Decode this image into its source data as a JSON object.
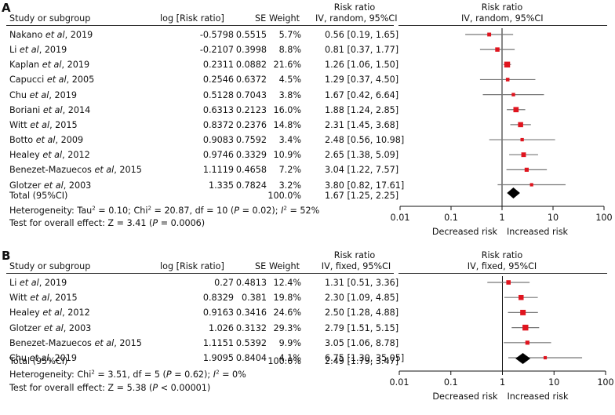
{
  "panels": {
    "A": {
      "label": "A",
      "headers": {
        "study": "Study or subgroup",
        "log": "log [Risk ratio]",
        "se": "SE",
        "weight": "Weight",
        "rr_title": "Risk ratio",
        "rr_method": "IV, random, 95%CI",
        "plot_title": "Risk ratio",
        "plot_method": "IV, random, 95%CI"
      },
      "rows": [
        {
          "author": "Nakano ",
          "etal": "et al",
          "year": ", 2019",
          "log": "-0.5798",
          "se": "0.5515",
          "weight": "5.7%",
          "ci": "0.56 [0.19, 1.65]"
        },
        {
          "author": "Li ",
          "etal": "et al",
          "year": ", 2019",
          "log": "-0.2107",
          "se": "0.3998",
          "weight": "8.8%",
          "ci": "0.81 [0.37, 1.77]"
        },
        {
          "author": "Kaplan ",
          "etal": "et al",
          "year": ", 2019",
          "log": "0.2311",
          "se": "0.0882",
          "weight": "21.6%",
          "ci": "1.26 [1.06, 1.50]"
        },
        {
          "author": "Capucci ",
          "etal": "et al",
          "year": ", 2005",
          "log": "0.2546",
          "se": "0.6372",
          "weight": "4.5%",
          "ci": "1.29 [0.37, 4.50]"
        },
        {
          "author": "Chu ",
          "etal": "et al",
          "year": ", 2019",
          "log": "0.5128",
          "se": "0.7043",
          "weight": "3.8%",
          "ci": "1.67 [0.42, 6.64]"
        },
        {
          "author": "Boriani ",
          "etal": "et al",
          "year": ", 2014",
          "log": "0.6313",
          "se": "0.2123",
          "weight": "16.0%",
          "ci": "1.88 [1.24, 2.85]"
        },
        {
          "author": "Witt ",
          "etal": "et al",
          "year": ", 2015",
          "log": "0.8372",
          "se": "0.2376",
          "weight": "14.8%",
          "ci": "2.31 [1.45, 3.68]"
        },
        {
          "author": "Botto ",
          "etal": "et al",
          "year": ", 2009",
          "log": "0.9083",
          "se": "0.7592",
          "weight": "3.4%",
          "ci": "2.48 [0.56, 10.98]"
        },
        {
          "author": "Healey ",
          "etal": "et al",
          "year": ", 2012",
          "log": "0.9746",
          "se": "0.3329",
          "weight": "10.9%",
          "ci": "2.65 [1.38, 5.09]"
        },
        {
          "author": "Benezet-Mazuecos ",
          "etal": "et al",
          "year": ", 2015",
          "log": "1.1119",
          "se": "0.4658",
          "weight": "7.2%",
          "ci": "3.04 [1.22, 7.57]"
        },
        {
          "author": "Glotzer ",
          "etal": "et al",
          "year": ", 2003",
          "log": "1.335",
          "se": "0.7824",
          "weight": "3.2%",
          "ci": "3.80 [0.82, 17.61]"
        }
      ],
      "total": {
        "label": "Total (95%CI)",
        "weight": "100.0%",
        "ci": "1.67 [1.25, 2.25]"
      },
      "heterogeneity": {
        "prefix": "Heterogeneity: Tau",
        "sup1": "2",
        "mid": " = 0.10; Chi",
        "sup2": "2",
        "mid2": " = 20.87, df = 10 (",
        "p": "P",
        "mid3": " = 0.02); ",
        "i": "I",
        "sup3": "2",
        "end": " = 52%"
      },
      "overall": {
        "prefix": "Test for overall effect: Z = 3.41 (",
        "p": "P",
        "end": " = 0.0006)"
      },
      "axis": {
        "ticks": [
          "0.01",
          "0.1",
          "1",
          "10",
          "100"
        ],
        "left": "Decreased risk",
        "right": "Increased risk"
      }
    },
    "B": {
      "label": "B",
      "headers": {
        "study": "Study or subgroup",
        "log": "log [Risk ratio]",
        "se": "SE",
        "weight": "Weight",
        "rr_title": "Risk ratio",
        "rr_method": "IV, fixed, 95%CI",
        "plot_title": "Risk ratio",
        "plot_method": "IV, fixed, 95%CI"
      },
      "rows": [
        {
          "author": "Li ",
          "etal": "et al",
          "year": ", 2019",
          "log": "0.27",
          "se": "0.4813",
          "weight": "12.4%",
          "ci": "1.31 [0.51, 3.36]"
        },
        {
          "author": "Witt ",
          "etal": "et al",
          "year": ", 2015",
          "log": "0.8329",
          "se": "0.381",
          "weight": "19.8%",
          "ci": "2.30 [1.09, 4.85]"
        },
        {
          "author": "Healey ",
          "etal": "et al",
          "year": ", 2012",
          "log": "0.9163",
          "se": "0.3416",
          "weight": "24.6%",
          "ci": "2.50 [1.28, 4.88]"
        },
        {
          "author": "Glotzer ",
          "etal": "et al",
          "year": ", 2003",
          "log": "1.026",
          "se": "0.3132",
          "weight": "29.3%",
          "ci": "2.79 [1.51, 5.15]"
        },
        {
          "author": "Benezet-Mazuecos ",
          "etal": "et al",
          "year": ", 2015",
          "log": "1.1151",
          "se": "0.5392",
          "weight": "9.9%",
          "ci": "3.05 [1.06, 8.78]"
        },
        {
          "author": "Chu ",
          "etal": "et al",
          "year": ", 2019",
          "log": "1.9095",
          "se": "0.8404",
          "weight": "4.1%",
          "ci": "6.75 [1.30, 35.05]"
        }
      ],
      "total": {
        "label": "Total (95%CI)",
        "weight": "100.0%",
        "ci": "2.49 [1.79, 3.47]"
      },
      "heterogeneity": {
        "prefix": "Heterogeneity: Chi",
        "sup1": "2",
        "mid": " = 3.51, df = 5 (",
        "p": "P",
        "mid3": " = 0.62); ",
        "i": "I",
        "sup3": "2",
        "end": " = 0%"
      },
      "overall": {
        "prefix": "Test for overall effect: Z = 5.38 (",
        "p": "P",
        "end": " < 0.00001)"
      },
      "axis": {
        "ticks": [
          "0.01",
          "0.1",
          "1",
          "10",
          "100"
        ],
        "left": "Decreased risk",
        "right": "Increased risk"
      }
    }
  },
  "chart_data": [
    {
      "type": "forest",
      "title": "Risk ratio IV, random, 95%CI",
      "scale": "log",
      "xlim": [
        0.01,
        100
      ],
      "x_ticks": [
        0.01,
        0.1,
        1,
        10,
        100
      ],
      "xlabel_left": "Decreased risk",
      "xlabel_right": "Increased risk",
      "studies": [
        "Nakano et al, 2019",
        "Li et al, 2019",
        "Kaplan et al, 2019",
        "Capucci et al, 2005",
        "Chu et al, 2019",
        "Boriani et al, 2014",
        "Witt et al, 2015",
        "Botto et al, 2009",
        "Healey et al, 2012",
        "Benezet-Mazuecos et al, 2015",
        "Glotzer et al, 2003"
      ],
      "rr": [
        0.56,
        0.81,
        1.26,
        1.29,
        1.67,
        1.88,
        2.31,
        2.48,
        2.65,
        3.04,
        3.8
      ],
      "lower": [
        0.19,
        0.37,
        1.06,
        0.37,
        0.42,
        1.24,
        1.45,
        0.56,
        1.38,
        1.22,
        0.82
      ],
      "upper": [
        1.65,
        1.77,
        1.5,
        4.5,
        6.64,
        2.85,
        3.68,
        10.98,
        5.09,
        7.57,
        17.61
      ],
      "weights": [
        5.7,
        8.8,
        21.6,
        4.5,
        3.8,
        16.0,
        14.8,
        3.4,
        10.9,
        7.2,
        3.2
      ],
      "pooled": {
        "rr": 1.67,
        "lower": 1.25,
        "upper": 2.25
      }
    },
    {
      "type": "forest",
      "title": "Risk ratio IV, fixed, 95%CI",
      "scale": "log",
      "xlim": [
        0.01,
        100
      ],
      "x_ticks": [
        0.01,
        0.1,
        1,
        10,
        100
      ],
      "xlabel_left": "Decreased risk",
      "xlabel_right": "Increased risk",
      "studies": [
        "Li et al, 2019",
        "Witt et al, 2015",
        "Healey et al, 2012",
        "Glotzer et al, 2003",
        "Benezet-Mazuecos et al, 2015",
        "Chu et al, 2019"
      ],
      "rr": [
        1.31,
        2.3,
        2.5,
        2.79,
        3.05,
        6.75
      ],
      "lower": [
        0.51,
        1.09,
        1.28,
        1.51,
        1.06,
        1.3
      ],
      "upper": [
        3.36,
        4.85,
        4.88,
        5.15,
        8.78,
        35.05
      ],
      "weights": [
        12.4,
        19.8,
        24.6,
        29.3,
        9.9,
        4.1
      ],
      "pooled": {
        "rr": 2.49,
        "lower": 1.79,
        "upper": 3.47
      }
    }
  ]
}
